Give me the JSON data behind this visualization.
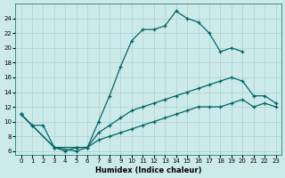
{
  "xlabel": "Humidex (Indice chaleur)",
  "bg_color": "#cdeaea",
  "line_color": "#006666",
  "grid_color": "#add0ce",
  "xlim": [
    -0.5,
    23.5
  ],
  "ylim": [
    5.5,
    26.0
  ],
  "xticks": [
    0,
    1,
    2,
    3,
    4,
    5,
    6,
    7,
    8,
    9,
    10,
    11,
    12,
    13,
    14,
    15,
    16,
    17,
    18,
    19,
    20,
    21,
    22,
    23
  ],
  "yticks": [
    6,
    8,
    10,
    12,
    14,
    16,
    18,
    20,
    22,
    24
  ],
  "curve1_x": [
    0,
    1,
    2,
    3,
    4,
    5,
    6,
    7,
    8,
    9,
    10,
    11,
    12,
    13,
    14,
    15,
    16,
    17,
    18,
    19,
    20,
    21,
    22,
    23
  ],
  "curve1_y": [
    11,
    9.5,
    9.5,
    6.5,
    6.0,
    6.5,
    6.5,
    10.0,
    13.5,
    17.5,
    21.0,
    22.5,
    22.5,
    23.0,
    25.0,
    24.0,
    23.5,
    22.0,
    19.5,
    20.0,
    19.5,
    null,
    null,
    null
  ],
  "curve2_x": [
    0,
    1,
    3,
    5,
    6,
    7,
    8,
    9,
    10,
    11,
    12,
    13,
    14,
    15,
    16,
    17,
    18,
    19,
    20,
    21,
    22,
    23
  ],
  "curve2_y": [
    11,
    9.5,
    6.5,
    6.5,
    6.5,
    8.5,
    9.5,
    10.5,
    11.5,
    12.0,
    12.5,
    13.0,
    13.5,
    14.0,
    14.5,
    15.0,
    15.5,
    16.0,
    15.5,
    13.5,
    13.5,
    12.5
  ],
  "curve3_x": [
    0,
    3,
    5,
    6,
    7,
    8,
    9,
    10,
    11,
    12,
    13,
    14,
    15,
    16,
    17,
    18,
    19,
    20,
    21,
    22,
    23
  ],
  "curve3_y": [
    11,
    6.5,
    6.0,
    6.5,
    7.5,
    8.0,
    8.5,
    9.0,
    9.5,
    10.0,
    10.5,
    11.0,
    11.5,
    12.0,
    12.0,
    12.0,
    12.5,
    13.0,
    12.0,
    12.5,
    12.0
  ]
}
